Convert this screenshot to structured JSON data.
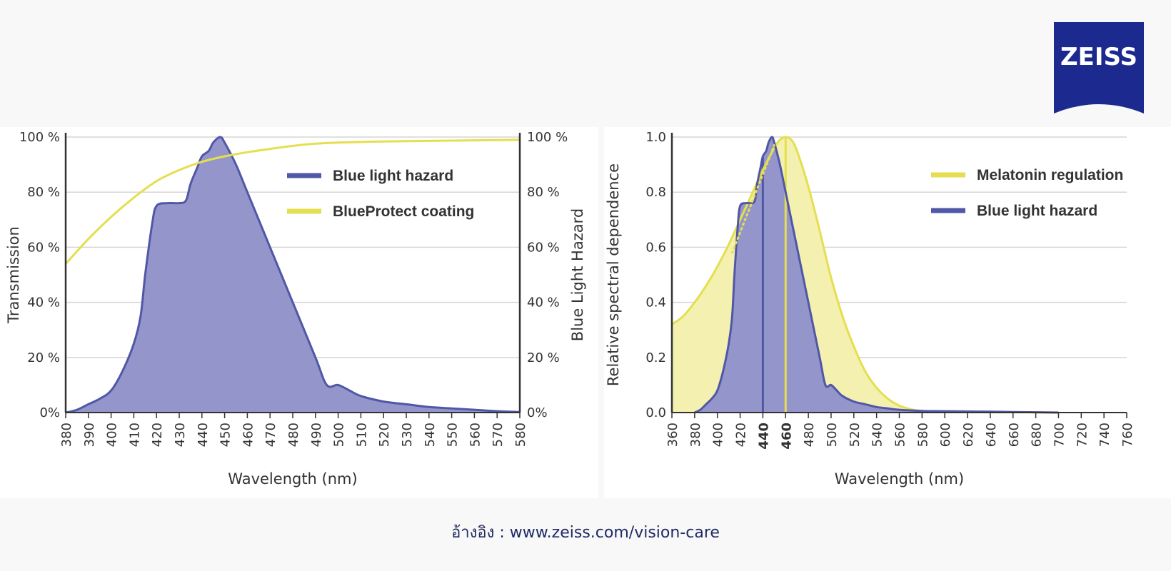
{
  "logo": {
    "text": "ZEISS"
  },
  "footer": {
    "text": "อ้างอิง : www.zeiss.com/vision-care"
  },
  "colors": {
    "hazard": "#5057a6",
    "hazard_fill": "#9496cb",
    "yellow": "#e5df4f",
    "yellow_fill": "#f3f0b0",
    "grid": "#d6d6d6",
    "axis": "#333333"
  },
  "chart_data": [
    {
      "type": "area",
      "xlabel": "Wavelength (nm)",
      "ylabel": "Transmission",
      "y2label": "Blue Light Hazard",
      "xlim": [
        380,
        580
      ],
      "ylim": [
        0,
        100
      ],
      "xticks": [
        "380",
        "390",
        "400",
        "410",
        "420",
        "430",
        "440",
        "450",
        "460",
        "470",
        "480",
        "490",
        "500",
        "510",
        "520",
        "530",
        "540",
        "550",
        "560",
        "570",
        "580"
      ],
      "yticks": [
        "0%",
        "20 %",
        "40 %",
        "60 %",
        "80 %",
        "100 %"
      ],
      "y2ticks": [
        "0%",
        "20 %",
        "40 %",
        "60 %",
        "80 %",
        "100 %"
      ],
      "legend_position": "top-right",
      "series": [
        {
          "name": "Blue light hazard",
          "color": "#5057a6",
          "x": [
            380,
            385,
            390,
            395,
            400,
            405,
            410,
            413,
            415,
            418,
            420,
            425,
            430,
            433,
            435,
            438,
            440,
            443,
            445,
            448,
            450,
            455,
            460,
            470,
            480,
            490,
            495,
            500,
            505,
            510,
            520,
            530,
            540,
            550,
            560,
            570,
            580
          ],
          "y": [
            0,
            1,
            3,
            5,
            8,
            15,
            25,
            35,
            50,
            68,
            75,
            76,
            76,
            77,
            83,
            89,
            93,
            95,
            98,
            100,
            98,
            90,
            80,
            60,
            40,
            20,
            10,
            10,
            8,
            6,
            4,
            3,
            2,
            1.5,
            1,
            0.5,
            0.2
          ]
        },
        {
          "name": "BlueProtect coating",
          "color": "#e5df4f",
          "x": [
            380,
            390,
            400,
            410,
            420,
            430,
            440,
            450,
            460,
            470,
            480,
            490,
            500,
            510,
            520,
            540,
            560,
            580
          ],
          "y": [
            54,
            63,
            71,
            78,
            84,
            88,
            91,
            93,
            94.5,
            95.7,
            96.8,
            97.6,
            98,
            98.2,
            98.4,
            98.6,
            98.8,
            99
          ]
        }
      ]
    },
    {
      "type": "area",
      "xlabel": "Wavelength (nm)",
      "ylabel": "Relative spectral dependence",
      "xlim": [
        360,
        760
      ],
      "ylim": [
        0,
        1.0
      ],
      "xticks": [
        "360",
        "380",
        "400",
        "420",
        "440",
        "460",
        "480",
        "500",
        "520",
        "540",
        "560",
        "580",
        "600",
        "620",
        "640",
        "660",
        "680",
        "700",
        "720",
        "740",
        "760"
      ],
      "yticks": [
        "0.0",
        "0.2",
        "0.4",
        "0.6",
        "0.8",
        "1.0"
      ],
      "highlighted_xticks": {
        "440": "#5057a6",
        "460": "#e5df4f"
      },
      "markers": [
        {
          "x": 440,
          "color": "#5057a6"
        },
        {
          "x": 460,
          "color": "#e5df4f"
        }
      ],
      "legend_position": "top-right",
      "series": [
        {
          "name": "Melatonin regulation",
          "color": "#e5df4f",
          "x": [
            360,
            370,
            380,
            390,
            400,
            410,
            420,
            430,
            440,
            450,
            455,
            460,
            465,
            470,
            480,
            490,
            500,
            510,
            520,
            530,
            540,
            550,
            560,
            570,
            580,
            600,
            620,
            640,
            660,
            680,
            700
          ],
          "y": [
            0.32,
            0.35,
            0.4,
            0.46,
            0.53,
            0.61,
            0.7,
            0.79,
            0.88,
            0.96,
            0.99,
            1.0,
            0.99,
            0.95,
            0.82,
            0.66,
            0.49,
            0.35,
            0.24,
            0.15,
            0.09,
            0.05,
            0.025,
            0.012,
            0.006,
            0.003,
            0.002,
            0.001,
            0.001,
            0.0005,
            0.0
          ]
        },
        {
          "name": "Blue light hazard",
          "color": "#5057a6",
          "x": [
            380,
            385,
            390,
            395,
            400,
            405,
            410,
            413,
            415,
            418,
            420,
            425,
            430,
            433,
            435,
            438,
            440,
            443,
            445,
            448,
            450,
            455,
            460,
            470,
            480,
            490,
            495,
            500,
            505,
            510,
            520,
            530,
            540,
            550,
            560,
            580,
            600,
            620,
            640,
            660,
            680,
            700
          ],
          "y": [
            0,
            0.01,
            0.03,
            0.05,
            0.08,
            0.15,
            0.25,
            0.35,
            0.5,
            0.68,
            0.75,
            0.76,
            0.76,
            0.77,
            0.83,
            0.89,
            0.93,
            0.95,
            0.98,
            1.0,
            0.98,
            0.9,
            0.8,
            0.6,
            0.4,
            0.2,
            0.1,
            0.1,
            0.08,
            0.06,
            0.04,
            0.03,
            0.02,
            0.015,
            0.01,
            0.006,
            0.005,
            0.004,
            0.003,
            0.002,
            0.001,
            0.0
          ]
        }
      ]
    }
  ]
}
